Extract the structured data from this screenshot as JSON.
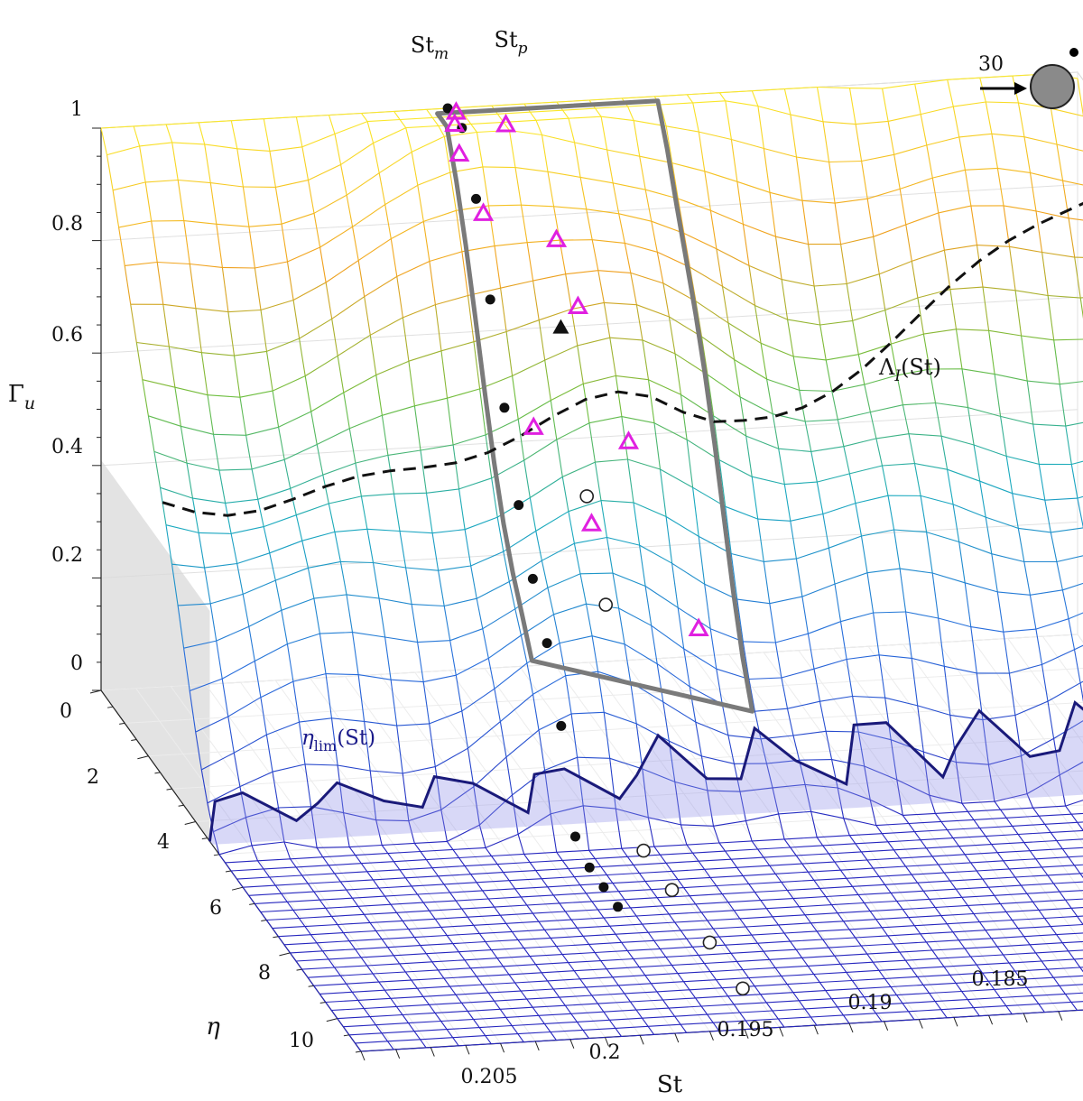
{
  "chart_data": {
    "type": "surface",
    "title": "",
    "xlabel": "St",
    "ylabel": "η",
    "zlabel": "Γ_u",
    "x_ticks": [
      "0.205",
      "0.2",
      "0.195",
      "0.19",
      "0.185"
    ],
    "y_ticks": [
      "0",
      "2",
      "4",
      "6",
      "8",
      "10"
    ],
    "z_ticks": [
      "0",
      "0.2",
      "0.4",
      "0.6",
      "0.8",
      "1"
    ],
    "xlim": [
      0.181,
      0.209
    ],
    "ylim": [
      0,
      11
    ],
    "zlim": [
      0,
      1
    ],
    "grid": true,
    "annotations": {
      "st_m": "St",
      "st_m_sub": "m",
      "st_p": "St",
      "st_p_sub": "p",
      "lambda": "Λ",
      "lambda_sub": "I",
      "lambda_arg": "(St)",
      "eta_lim": "η",
      "eta_lim_sub": "lim",
      "eta_lim_arg": "(St)"
    },
    "inset": {
      "label": "30"
    },
    "curves": {
      "st_m_points_eta": [
        0,
        0.6,
        1.2,
        1.8,
        2.4,
        3.0,
        3.6,
        4.2,
        4.8,
        5.4,
        6.0,
        6.6,
        7.2
      ],
      "st_p_points_eta": [
        3.2,
        4.0,
        5.6,
        6.8,
        8.4,
        9.8
      ]
    }
  }
}
